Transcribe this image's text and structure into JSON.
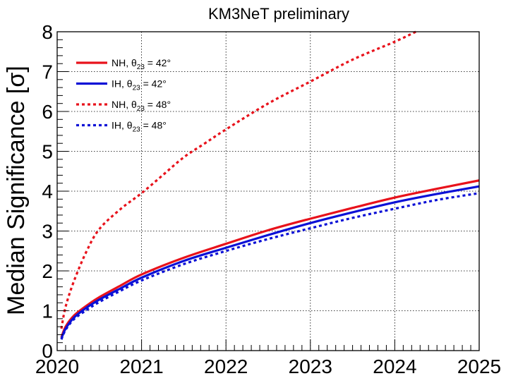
{
  "chart_data": {
    "type": "line",
    "title": "KM3NeT preliminary",
    "xlabel": "",
    "ylabel": "Median Significance [σ]",
    "xlim": [
      2020,
      2025
    ],
    "ylim": [
      0,
      8
    ],
    "x_ticks": [
      "2020",
      "2021",
      "2022",
      "2023",
      "2024",
      "2025"
    ],
    "y_ticks": [
      "0",
      "1",
      "2",
      "3",
      "4",
      "5",
      "6",
      "7",
      "8"
    ],
    "grid": true,
    "legend_position": "top-left",
    "series": [
      {
        "name": "NH, θ23 = 42°",
        "legend": {
          "pre": "NH, θ",
          "sub": "23",
          "post": " = 42°"
        },
        "color": "#e8121b",
        "style": "solid",
        "x": [
          2020.05,
          2020.1,
          2020.2,
          2020.35,
          2020.5,
          2020.75,
          2021.0,
          2021.5,
          2022.0,
          2022.5,
          2023.0,
          2023.5,
          2024.0,
          2024.5,
          2025.0
        ],
        "y": [
          0.33,
          0.6,
          0.88,
          1.13,
          1.34,
          1.63,
          1.91,
          2.33,
          2.68,
          3.02,
          3.31,
          3.58,
          3.84,
          4.06,
          4.27
        ]
      },
      {
        "name": "IH, θ23 = 42°",
        "legend": {
          "pre": "IH,  θ",
          "sub": "23",
          "post": " = 42°"
        },
        "color": "#0b10d6",
        "style": "solid",
        "x": [
          2020.05,
          2020.1,
          2020.2,
          2020.35,
          2020.5,
          2020.75,
          2021.0,
          2021.5,
          2022.0,
          2022.5,
          2023.0,
          2023.5,
          2024.0,
          2024.5,
          2025.0
        ],
        "y": [
          0.3,
          0.55,
          0.83,
          1.08,
          1.28,
          1.56,
          1.83,
          2.25,
          2.58,
          2.9,
          3.2,
          3.47,
          3.72,
          3.93,
          4.12
        ]
      },
      {
        "name": "NH, θ23 = 48°",
        "legend": {
          "pre": "NH, θ",
          "sub": "23",
          "post": " = 48°"
        },
        "color": "#e8121b",
        "style": "dotted",
        "x": [
          2020.05,
          2020.1,
          2020.2,
          2020.35,
          2020.5,
          2020.75,
          2021.0,
          2021.25,
          2021.5,
          2021.75,
          2022.0,
          2022.5,
          2023.0,
          2023.5,
          2024.0,
          2024.25
        ],
        "y": [
          0.55,
          1.1,
          1.75,
          2.5,
          3.05,
          3.55,
          3.95,
          4.4,
          4.85,
          5.2,
          5.55,
          6.2,
          6.75,
          7.3,
          7.75,
          8.0
        ]
      },
      {
        "name": "IH, θ23 = 48°",
        "legend": {
          "pre": "IH,  θ",
          "sub": "23",
          "post": " = 48°"
        },
        "color": "#0b10d6",
        "style": "dotted",
        "x": [
          2020.05,
          2020.1,
          2020.2,
          2020.35,
          2020.5,
          2020.75,
          2021.0,
          2021.5,
          2022.0,
          2022.5,
          2023.0,
          2023.5,
          2024.0,
          2024.5,
          2025.0
        ],
        "y": [
          0.28,
          0.52,
          0.79,
          1.02,
          1.22,
          1.5,
          1.76,
          2.17,
          2.5,
          2.8,
          3.07,
          3.33,
          3.56,
          3.78,
          3.95
        ]
      }
    ]
  }
}
